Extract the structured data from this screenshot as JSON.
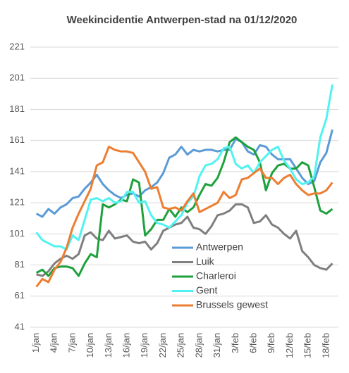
{
  "chart_data": {
    "type": "line",
    "title": "Weekincidentie  Antwerpen-stad  na 01/12/2020",
    "categories": [
      "1/jan",
      null,
      null,
      "4/jan",
      null,
      null,
      "7/jan",
      null,
      null,
      "10/jan",
      null,
      null,
      "13/jan",
      null,
      null,
      "16/jan",
      null,
      null,
      "19/jan",
      null,
      null,
      "22/jan",
      null,
      null,
      "25/jan",
      null,
      null,
      "28/jan",
      null,
      null,
      "31/jan",
      null,
      null,
      "3/feb",
      null,
      null,
      "6/feb",
      null,
      null,
      "9/feb",
      null,
      null,
      "12/feb",
      null,
      null,
      "15/feb",
      null,
      null,
      "18/feb",
      null
    ],
    "series": [
      {
        "name": "Antwerpen",
        "color": "#5b9bd5",
        "values": [
          114,
          112,
          117,
          114,
          118,
          120,
          124,
          125,
          130,
          134,
          139,
          133,
          129,
          126,
          124,
          126,
          127,
          125,
          129,
          131,
          134,
          140,
          150,
          152,
          157,
          152,
          155,
          154,
          155,
          155,
          154,
          155,
          155,
          162,
          160,
          154,
          152,
          158,
          157,
          152,
          149,
          149,
          149,
          143,
          137,
          133,
          135,
          147,
          153,
          168
        ]
      },
      {
        "name": "Luik",
        "color": "#7f7f7f",
        "values": [
          75,
          74,
          77,
          82,
          85,
          87,
          85,
          88,
          100,
          102,
          98,
          97,
          103,
          98,
          99,
          100,
          96,
          95,
          96,
          91,
          95,
          103,
          105,
          107,
          108,
          112,
          105,
          104,
          101,
          106,
          113,
          114,
          116,
          120,
          120,
          118,
          108,
          109,
          113,
          107,
          105,
          101,
          98,
          103,
          90,
          86,
          81,
          79,
          78,
          82
        ]
      },
      {
        "name": "Charleroi",
        "color": "#1ea13c",
        "values": [
          76,
          78,
          74,
          79,
          80,
          80,
          79,
          74,
          82,
          88,
          86,
          120,
          118,
          120,
          123,
          122,
          136,
          134,
          100,
          104,
          110,
          110,
          117,
          112,
          118,
          115,
          118,
          126,
          133,
          132,
          137,
          147,
          160,
          163,
          160,
          157,
          155,
          147,
          129,
          140,
          145,
          146,
          143,
          143,
          147,
          145,
          131,
          116,
          114,
          117
        ]
      },
      {
        "name": "Gent",
        "color": "#52f2f2",
        "values": [
          102,
          97,
          95,
          93,
          93,
          91,
          100,
          97,
          110,
          123,
          124,
          122,
          124,
          121,
          122,
          128,
          128,
          121,
          122,
          113,
          108,
          107,
          105,
          109,
          113,
          121,
          125,
          138,
          145,
          146,
          149,
          156,
          157,
          146,
          143,
          145,
          140,
          147,
          151,
          155,
          157,
          148,
          143,
          136,
          133,
          134,
          138,
          163,
          175,
          197
        ]
      },
      {
        "name": "Brussels gewest",
        "color": "#ed7d31",
        "values": [
          67,
          72,
          70,
          78,
          83,
          92,
          105,
          114,
          122,
          130,
          145,
          147,
          157,
          155,
          154,
          154,
          153,
          147,
          141,
          130,
          131,
          118,
          117,
          118,
          116,
          122,
          127,
          115,
          117,
          119,
          121,
          128,
          124,
          126,
          136,
          137,
          140,
          143,
          137,
          137,
          133,
          137,
          139,
          133,
          129,
          126,
          127,
          127,
          129,
          134
        ]
      }
    ],
    "ylim": [
      41,
      221
    ],
    "yticks": [
      41,
      61,
      81,
      101,
      121,
      141,
      161,
      181,
      201,
      221
    ],
    "grid": true
  }
}
